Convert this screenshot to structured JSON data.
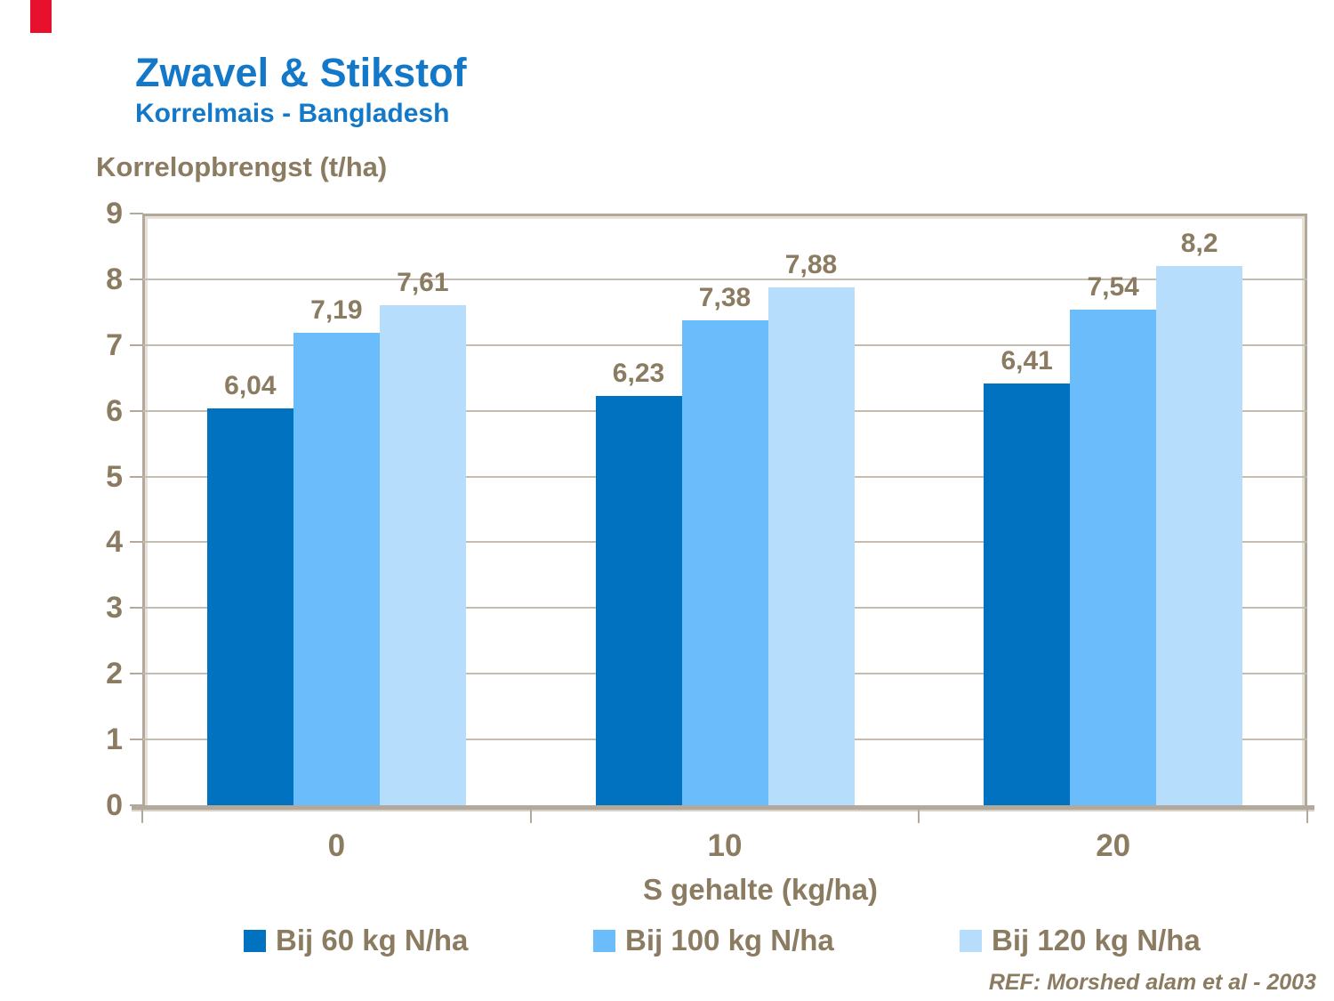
{
  "page": {
    "background": "#FFFFFF"
  },
  "decor": {
    "red_marker_color": "#E8112D"
  },
  "header": {
    "title": "Zwavel & Stikstof",
    "subtitle": "Korrelmais  - Bangladesh",
    "title_color": "#1478C8"
  },
  "chart_data": {
    "type": "bar",
    "title": "Zwavel & Stikstof",
    "subtitle": "Korrelmais - Bangladesh",
    "ylabel": "Korrelopbrengst (t/ha)",
    "xlabel": "S gehalte (kg/ha)",
    "categories": [
      "0",
      "10",
      "20"
    ],
    "series": [
      {
        "name": "Bij 60 kg N/ha",
        "color": "#0072BF",
        "values": [
          6.04,
          6.23,
          6.41
        ],
        "value_labels": [
          "6,04",
          "6,23",
          "6,41"
        ]
      },
      {
        "name": "Bij 100 kg N/ha",
        "color": "#6ABCFA",
        "values": [
          7.19,
          7.38,
          7.54
        ],
        "value_labels": [
          "7,19",
          "7,38",
          "7,54"
        ]
      },
      {
        "name": "Bij 120 kg N/ha",
        "color": "#B7DDFD",
        "values": [
          7.61,
          7.88,
          8.2
        ],
        "value_labels": [
          "7,61",
          "7,88",
          "8,2"
        ]
      }
    ],
    "ylim": [
      0,
      9
    ],
    "ytick_labels": [
      "0",
      "1",
      "2",
      "3",
      "4",
      "5",
      "6",
      "7",
      "8",
      "9"
    ],
    "grid": true,
    "legend_position": "bottom",
    "text_color": "#8B7B61",
    "gridline_color": "#C4BCAF",
    "axis_frame_color": "#B2A89B"
  },
  "footer": {
    "ref": "REF:  Morshed alam et al - 2003"
  }
}
